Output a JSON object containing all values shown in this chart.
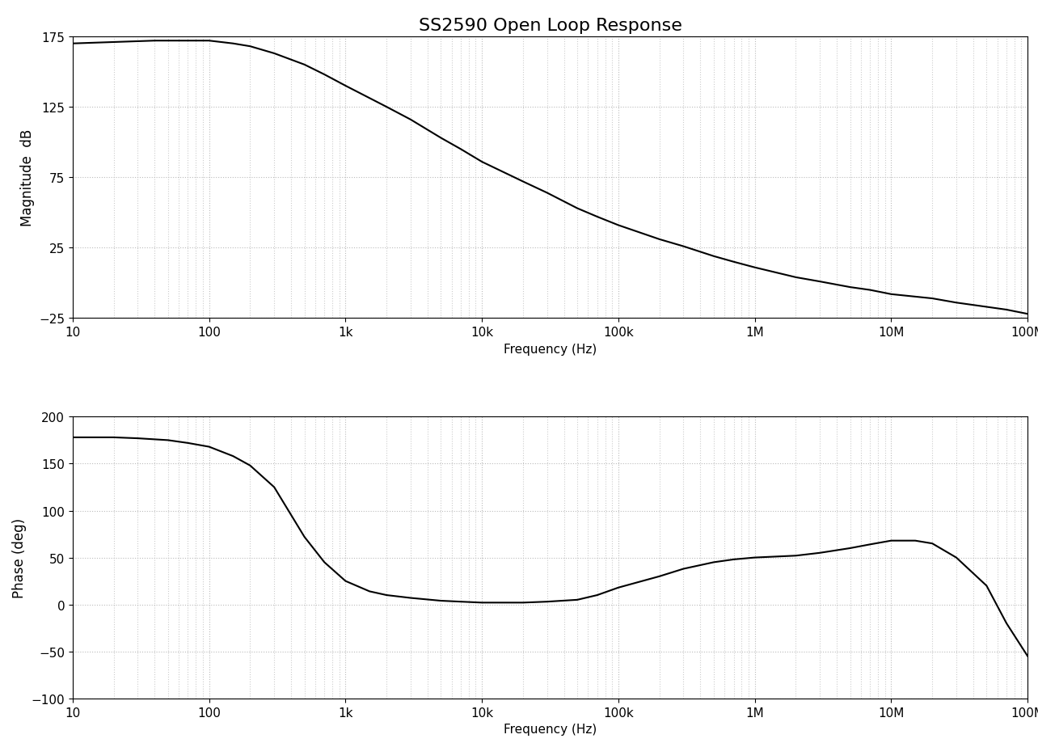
{
  "title": "SS2590 Open Loop Response",
  "title_fontsize": 16,
  "mag_ylabel": "Magnitude  dB",
  "phase_ylabel": "Phase (deg)",
  "xlabel": "Frequency (Hz)",
  "mag_ylim": [
    -25,
    175
  ],
  "mag_yticks": [
    -25,
    25,
    75,
    125,
    175
  ],
  "phase_ylim": [
    -100,
    200
  ],
  "phase_yticks": [
    -100,
    -50,
    0,
    50,
    100,
    150,
    200
  ],
  "freq_xlim": [
    10,
    100000000.0
  ],
  "xtick_labels": [
    "10",
    "100",
    "1k",
    "10k",
    "100k",
    "1M",
    "10M",
    "100M"
  ],
  "xtick_values": [
    10,
    100,
    1000,
    10000,
    100000,
    1000000,
    10000000,
    100000000
  ],
  "line_color": "#000000",
  "line_width": 1.5,
  "grid_major_color": "#bbbbbb",
  "grid_minor_color": "#cccccc",
  "grid_linestyle": ":",
  "grid_linewidth": 0.8,
  "background_color": "#ffffff",
  "mag_data_freq": [
    10,
    20,
    40,
    60,
    80,
    100,
    150,
    200,
    300,
    500,
    700,
    1000,
    2000,
    3000,
    5000,
    7000,
    10000,
    20000,
    30000,
    50000,
    70000,
    100000,
    200000,
    300000,
    500000,
    700000,
    1000000,
    2000000,
    3000000,
    5000000,
    7000000,
    10000000,
    20000000,
    30000000,
    50000000,
    70000000,
    100000000
  ],
  "mag_data_db": [
    170,
    171,
    172,
    172,
    172,
    172,
    170,
    168,
    163,
    155,
    148,
    140,
    125,
    116,
    103,
    95,
    86,
    72,
    64,
    53,
    47,
    41,
    31,
    26,
    19,
    15,
    11,
    4,
    1,
    -3,
    -5,
    -8,
    -11,
    -14,
    -17,
    -19,
    -22
  ],
  "phase_data_freq": [
    10,
    20,
    30,
    50,
    70,
    100,
    150,
    200,
    300,
    500,
    700,
    1000,
    1500,
    2000,
    3000,
    5000,
    7000,
    10000,
    20000,
    30000,
    50000,
    70000,
    100000,
    200000,
    300000,
    500000,
    700000,
    1000000,
    2000000,
    3000000,
    5000000,
    7000000,
    10000000,
    15000000,
    20000000,
    30000000,
    50000000,
    70000000,
    100000000
  ],
  "phase_data_deg": [
    178,
    178,
    177,
    175,
    172,
    168,
    158,
    148,
    125,
    72,
    45,
    25,
    14,
    10,
    7,
    4,
    3,
    2,
    2,
    3,
    5,
    10,
    18,
    30,
    38,
    45,
    48,
    50,
    52,
    55,
    60,
    64,
    68,
    68,
    65,
    50,
    20,
    -20,
    -55
  ]
}
